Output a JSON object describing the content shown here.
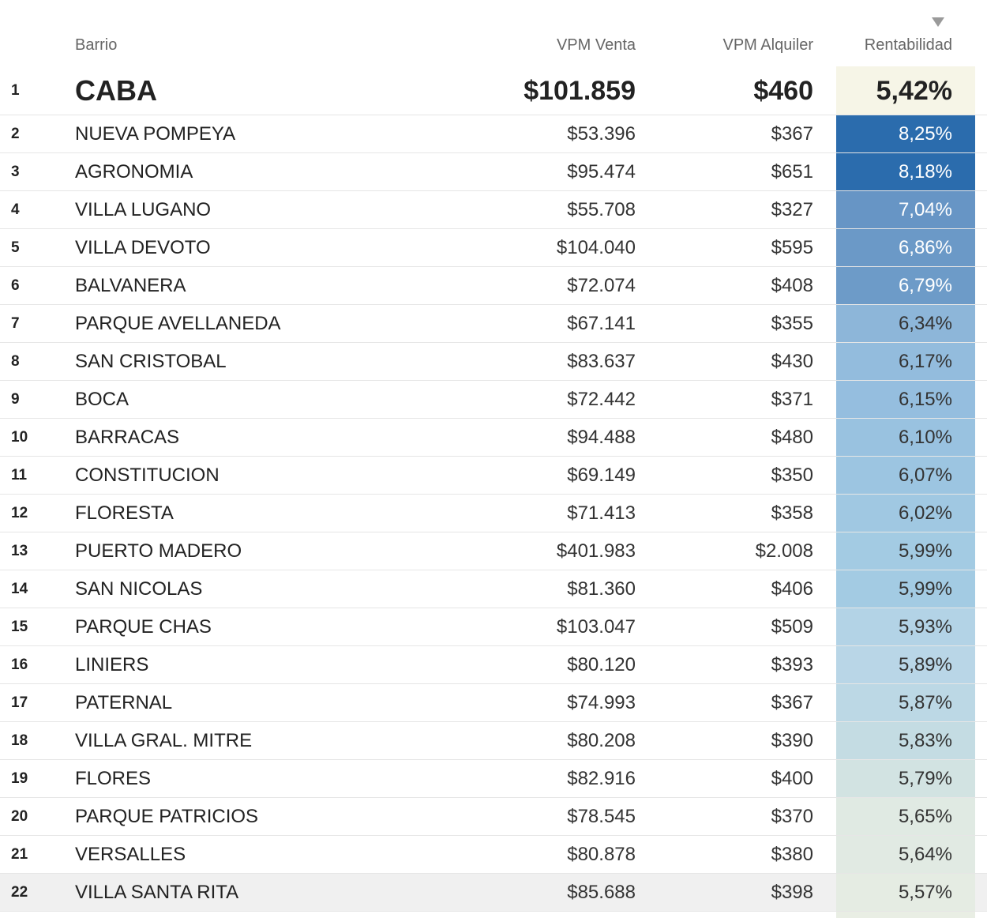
{
  "header": {
    "barrio": "Barrio",
    "venta": "VPM Venta",
    "alquiler": "VPM Alquiler",
    "rentabilidad": "Rentabilidad",
    "sort_icon": "sort-down-icon"
  },
  "summary": {
    "rank": "1",
    "barrio": "CABA",
    "venta": "$101.859",
    "alquiler": "$460",
    "rentabilidad": "5,42%",
    "color": "#f6f5e7",
    "text_color": "#222222"
  },
  "rows": [
    {
      "rank": "2",
      "barrio": "NUEVA POMPEYA",
      "venta": "$53.396",
      "alquiler": "$367",
      "rentabilidad": "8,25%",
      "color": "#2b6cad",
      "text_color": "#ffffff"
    },
    {
      "rank": "3",
      "barrio": "AGRONOMIA",
      "venta": "$95.474",
      "alquiler": "$651",
      "rentabilidad": "8,18%",
      "color": "#2b6cad",
      "text_color": "#ffffff"
    },
    {
      "rank": "4",
      "barrio": "VILLA LUGANO",
      "venta": "$55.708",
      "alquiler": "$327",
      "rentabilidad": "7,04%",
      "color": "#6795c5",
      "text_color": "#ffffff"
    },
    {
      "rank": "5",
      "barrio": "VILLA DEVOTO",
      "venta": "$104.040",
      "alquiler": "$595",
      "rentabilidad": "6,86%",
      "color": "#6b99c7",
      "text_color": "#ffffff"
    },
    {
      "rank": "6",
      "barrio": "BALVANERA",
      "venta": "$72.074",
      "alquiler": "$408",
      "rentabilidad": "6,79%",
      "color": "#6d9bc8",
      "text_color": "#ffffff"
    },
    {
      "rank": "7",
      "barrio": "PARQUE AVELLANEDA",
      "venta": "$67.141",
      "alquiler": "$355",
      "rentabilidad": "6,34%",
      "color": "#8db6d9",
      "text_color": "#333333"
    },
    {
      "rank": "8",
      "barrio": "SAN CRISTOBAL",
      "venta": "$83.637",
      "alquiler": "$430",
      "rentabilidad": "6,17%",
      "color": "#93bcdd",
      "text_color": "#333333"
    },
    {
      "rank": "9",
      "barrio": "BOCA",
      "venta": "$72.442",
      "alquiler": "$371",
      "rentabilidad": "6,15%",
      "color": "#95bedf",
      "text_color": "#333333"
    },
    {
      "rank": "10",
      "barrio": "BARRACAS",
      "venta": "$94.488",
      "alquiler": "$480",
      "rentabilidad": "6,10%",
      "color": "#99c2e0",
      "text_color": "#333333"
    },
    {
      "rank": "11",
      "barrio": "CONSTITUCION",
      "venta": "$69.149",
      "alquiler": "$350",
      "rentabilidad": "6,07%",
      "color": "#9cc5e1",
      "text_color": "#333333"
    },
    {
      "rank": "12",
      "barrio": "FLORESTA",
      "venta": "$71.413",
      "alquiler": "$358",
      "rentabilidad": "6,02%",
      "color": "#a0c8e2",
      "text_color": "#333333"
    },
    {
      "rank": "13",
      "barrio": "PUERTO MADERO",
      "venta": "$401.983",
      "alquiler": "$2.008",
      "rentabilidad": "5,99%",
      "color": "#a3cbe3",
      "text_color": "#333333"
    },
    {
      "rank": "14",
      "barrio": "SAN NICOLAS",
      "venta": "$81.360",
      "alquiler": "$406",
      "rentabilidad": "5,99%",
      "color": "#a3cbe3",
      "text_color": "#333333"
    },
    {
      "rank": "15",
      "barrio": "PARQUE CHAS",
      "venta": "$103.047",
      "alquiler": "$509",
      "rentabilidad": "5,93%",
      "color": "#b3d3e6",
      "text_color": "#333333"
    },
    {
      "rank": "16",
      "barrio": "LINIERS",
      "venta": "$80.120",
      "alquiler": "$393",
      "rentabilidad": "5,89%",
      "color": "#b9d6e7",
      "text_color": "#333333"
    },
    {
      "rank": "17",
      "barrio": "PATERNAL",
      "venta": "$74.993",
      "alquiler": "$367",
      "rentabilidad": "5,87%",
      "color": "#bcd8e5",
      "text_color": "#333333"
    },
    {
      "rank": "18",
      "barrio": "VILLA GRAL. MITRE",
      "venta": "$80.208",
      "alquiler": "$390",
      "rentabilidad": "5,83%",
      "color": "#c4dce3",
      "text_color": "#333333"
    },
    {
      "rank": "19",
      "barrio": "FLORES",
      "venta": "$82.916",
      "alquiler": "$400",
      "rentabilidad": "5,79%",
      "color": "#d2e3e2",
      "text_color": "#333333"
    },
    {
      "rank": "20",
      "barrio": "PARQUE PATRICIOS",
      "venta": "$78.545",
      "alquiler": "$370",
      "rentabilidad": "5,65%",
      "color": "#e0eae3",
      "text_color": "#333333"
    },
    {
      "rank": "21",
      "barrio": "VERSALLES",
      "venta": "$80.878",
      "alquiler": "$380",
      "rentabilidad": "5,64%",
      "color": "#e1eae3",
      "text_color": "#333333"
    },
    {
      "rank": "22",
      "barrio": "VILLA SANTA RITA",
      "venta": "$85.688",
      "alquiler": "$398",
      "rentabilidad": "5,57%",
      "color": "#e5ece3",
      "text_color": "#333333",
      "highlighted": true
    }
  ]
}
